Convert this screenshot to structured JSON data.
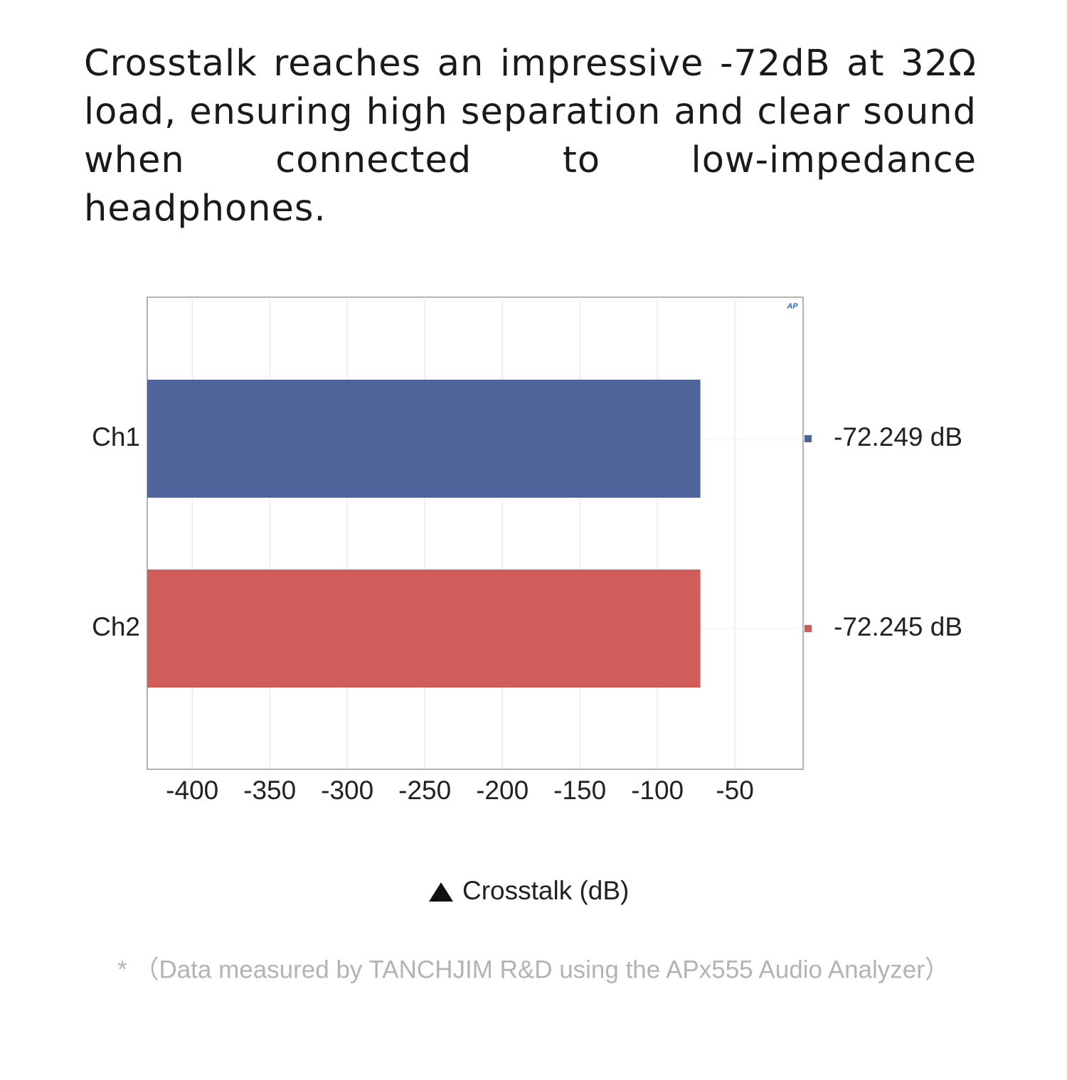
{
  "chart_data": {
    "type": "barh",
    "title": "Crosstalk reaches an impressive -72dB at 32Ω load, ensuring high separation and clear sound when connected to low-impedance headphones.",
    "logo": "AP",
    "categories": [
      "Ch1",
      "Ch2"
    ],
    "series": [
      {
        "name": "Ch1",
        "color": "#4a6299",
        "values": [
          -72.249,
          null
        ],
        "value_labels": [
          "-72.249 dB",
          null
        ]
      },
      {
        "name": "Ch2",
        "color": "#d05a57",
        "values": [
          null,
          -72.245
        ],
        "value_labels": [
          null,
          "-72.245 dB"
        ]
      }
    ],
    "xlim": [
      -429,
      -6
    ],
    "xticks": [
      -400,
      -350,
      -300,
      -250,
      -200,
      -150,
      -100,
      -50
    ],
    "grid": true,
    "xlabel": "Crosstalk (dB)",
    "footnote": "* （Data measured by TANCHJIM R&D using the APx555 Audio Analyzer）"
  }
}
